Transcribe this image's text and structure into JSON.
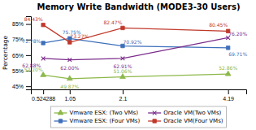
{
  "chart_data": {
    "type": "line",
    "title": "Memory Write Bandwidth (MODE3-30 Users)",
    "y_label": "Percentage",
    "x": [
      0.524288,
      1.05,
      2.1,
      4.19
    ],
    "xlim": [
      0.28,
      4.55
    ],
    "xticks": [
      0.524288,
      1.05,
      2.1,
      4.19
    ],
    "ylim": [
      43,
      90
    ],
    "yticks": [
      {
        "value": 45,
        "label": "45%"
      },
      {
        "value": 55,
        "label": "55%"
      },
      {
        "value": 65,
        "label": "65%"
      },
      {
        "value": 75,
        "label": "75%"
      },
      {
        "value": 85,
        "label": "85%"
      }
    ],
    "grid": false,
    "legend": "bottom",
    "data_labels": true,
    "series": [
      {
        "name": "Vmware ESX: (Two VMs)",
        "color": "#8db84a",
        "marker": "triangle",
        "line_style": "solid",
        "values": [
          52.2,
          49.87,
          51.06,
          52.86
        ],
        "value_labels": [
          "52.20%",
          "49.87%",
          "51.06%",
          "52.86%"
        ]
      },
      {
        "name": "Vmware ESX: (Four VMs)",
        "color": "#3d6fba",
        "marker": "square",
        "line_style": "solid",
        "values": [
          72.78,
          75.75,
          70.92,
          69.71
        ],
        "value_labels": [
          "72.78%",
          "75.75%",
          "70.92%",
          "69.71%"
        ]
      },
      {
        "name": "Oracle VM(Two VMs)",
        "color": "#7b2d8b",
        "marker": "x",
        "line_style": "solid",
        "values": [
          62.88,
          62.0,
          62.91,
          76.2
        ],
        "value_labels": [
          "62.88%",
          "62.00%",
          "62.91%",
          "76.20%"
        ]
      },
      {
        "name": "Oracle VM(Four VMs)",
        "color": "#c0392b",
        "marker": "square",
        "line_style": "solid",
        "values": [
          84.43,
          73.27,
          82.47,
          80.45
        ],
        "value_labels": [
          "84.43%",
          "73.27%",
          "82.47%",
          "80.45%"
        ]
      }
    ]
  }
}
